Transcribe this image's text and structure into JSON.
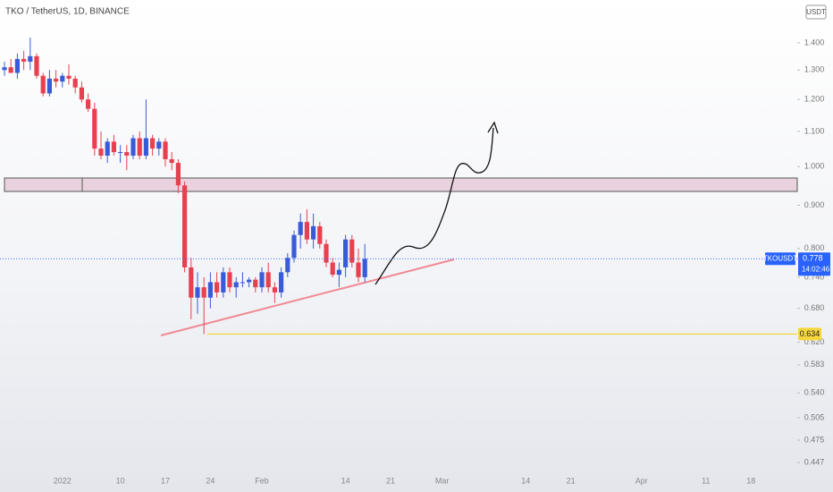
{
  "chart_data": {
    "type": "candlestick",
    "title": "TKO / TetherUS, 1D, BINANCE",
    "currency_button": "USDT",
    "log_scale": true,
    "grid": false,
    "up_color": "#3a5bd9",
    "down_color": "#e8404f",
    "categories": [
      null,
      null,
      null,
      null,
      null,
      null,
      null,
      null,
      null,
      "2022",
      null,
      null,
      null,
      null,
      null,
      null,
      null,
      null,
      "10",
      null,
      null,
      null,
      null,
      null,
      null,
      "17",
      null,
      null,
      null,
      null,
      null,
      null,
      "24",
      null,
      null,
      null,
      null,
      null,
      null,
      null,
      "Feb",
      null,
      null,
      null,
      null,
      null,
      null,
      null,
      null,
      null,
      null,
      null,
      null,
      "14",
      null,
      null,
      null,
      null,
      null,
      null,
      "21",
      null,
      null,
      null,
      null,
      null,
      null,
      null,
      "Mar",
      null,
      null,
      null,
      null,
      null,
      null,
      null,
      null,
      null,
      null,
      null,
      null,
      "14",
      null,
      null,
      null,
      null,
      null,
      null,
      "21",
      null,
      null,
      null,
      null,
      null,
      null,
      null,
      null,
      null,
      null,
      "Apr",
      null,
      null,
      null,
      null,
      null,
      null,
      null,
      null,
      null,
      "11",
      null,
      null,
      null,
      null,
      null,
      null,
      "18",
      null,
      null,
      null,
      null,
      null,
      null,
      null
    ],
    "open": [
      1.3,
      1.31,
      1.29,
      1.34,
      1.33,
      1.35,
      1.28,
      1.22,
      1.27,
      1.26,
      1.28,
      1.27,
      1.24,
      1.2,
      1.17,
      1.05,
      1.03,
      1.07,
      1.04,
      1.04,
      1.03,
      1.08,
      1.03,
      1.08,
      1.05,
      1.07,
      1.02,
      1.01,
      0.95,
      0.76,
      0.7,
      0.72,
      0.7,
      0.73,
      0.71,
      0.75,
      0.72,
      0.73,
      0.73,
      0.735,
      0.72,
      0.75,
      0.72,
      0.71,
      0.75,
      0.78,
      0.83,
      0.86,
      0.82,
      0.85,
      0.81,
      0.77,
      0.745,
      0.76,
      0.82,
      0.77,
      0.74,
      null,
      null,
      null,
      null,
      null,
      null,
      null,
      null,
      null,
      null,
      null,
      null,
      null,
      null,
      null,
      null,
      null,
      null,
      null,
      null,
      null,
      null,
      null,
      null,
      null,
      null,
      null,
      null,
      null,
      null,
      null,
      null,
      null,
      null,
      null,
      null,
      null,
      null,
      null,
      null,
      null,
      null,
      null,
      null,
      null,
      null,
      null,
      null,
      null,
      null,
      null,
      null,
      null,
      null,
      null,
      null,
      null,
      null,
      null,
      null,
      null,
      null,
      null,
      null,
      null,
      null,
      null
    ],
    "high": [
      1.33,
      1.34,
      1.36,
      1.37,
      1.42,
      1.36,
      1.29,
      1.3,
      1.3,
      1.29,
      1.32,
      1.28,
      1.26,
      1.22,
      1.19,
      1.1,
      1.08,
      1.09,
      1.06,
      1.06,
      1.09,
      1.1,
      1.2,
      1.09,
      1.08,
      1.08,
      1.04,
      1.02,
      0.96,
      0.78,
      0.75,
      0.74,
      0.75,
      0.75,
      0.76,
      0.76,
      0.74,
      0.75,
      0.74,
      0.74,
      0.76,
      0.77,
      0.73,
      0.76,
      0.79,
      0.84,
      0.88,
      0.89,
      0.88,
      0.86,
      0.82,
      0.78,
      0.77,
      0.83,
      0.83,
      0.8,
      0.81,
      null,
      null,
      null,
      null,
      null,
      null,
      null,
      null,
      null,
      null,
      null,
      null,
      null,
      null,
      null,
      null,
      null,
      null,
      null,
      null,
      null,
      null,
      null,
      null,
      null,
      null,
      null,
      null,
      null,
      null,
      null,
      null,
      null,
      null,
      null,
      null,
      null,
      null,
      null,
      null,
      null,
      null,
      null,
      null,
      null,
      null,
      null,
      null,
      null,
      null,
      null,
      null,
      null,
      null,
      null,
      null,
      null,
      null,
      null,
      null,
      null,
      null,
      null,
      null,
      null,
      null,
      null
    ],
    "low": [
      1.28,
      1.29,
      1.27,
      1.3,
      1.3,
      1.27,
      1.21,
      1.21,
      1.24,
      1.24,
      1.25,
      1.22,
      1.19,
      1.16,
      1.03,
      1.02,
      1.01,
      1.03,
      1.01,
      0.99,
      1.02,
      1.02,
      1.02,
      1.03,
      1.03,
      1.0,
      0.99,
      0.93,
      0.75,
      0.66,
      0.67,
      0.634,
      0.68,
      0.7,
      0.7,
      0.71,
      0.7,
      0.72,
      0.72,
      0.71,
      0.71,
      0.71,
      0.69,
      0.7,
      0.74,
      0.77,
      0.8,
      0.81,
      0.8,
      0.8,
      0.76,
      0.74,
      0.72,
      0.74,
      0.76,
      0.73,
      0.73,
      null,
      null,
      null,
      null,
      null,
      null,
      null,
      null,
      null,
      null,
      null,
      null,
      null,
      null,
      null,
      null,
      null,
      null,
      null,
      null,
      null,
      null,
      null,
      null,
      null,
      null,
      null,
      null,
      null,
      null,
      null,
      null,
      null,
      null,
      null,
      null,
      null,
      null,
      null,
      null,
      null,
      null,
      null,
      null,
      null,
      null,
      null,
      null,
      null,
      null,
      null,
      null,
      null,
      null,
      null,
      null,
      null,
      null,
      null,
      null,
      null,
      null,
      null,
      null,
      null,
      null,
      null
    ],
    "close": [
      1.31,
      1.29,
      1.34,
      1.33,
      1.35,
      1.28,
      1.22,
      1.27,
      1.26,
      1.28,
      1.27,
      1.24,
      1.2,
      1.17,
      1.05,
      1.03,
      1.07,
      1.04,
      1.04,
      1.03,
      1.08,
      1.03,
      1.08,
      1.05,
      1.07,
      1.02,
      1.01,
      0.95,
      0.76,
      0.7,
      0.72,
      0.7,
      0.73,
      0.71,
      0.75,
      0.72,
      0.73,
      0.73,
      0.735,
      0.72,
      0.75,
      0.72,
      0.71,
      0.75,
      0.78,
      0.83,
      0.86,
      0.82,
      0.85,
      0.81,
      0.77,
      0.745,
      0.755,
      0.82,
      0.77,
      0.74,
      0.778,
      null,
      null,
      null,
      null,
      null,
      null,
      null,
      null,
      null,
      null,
      null,
      null,
      null,
      null,
      null,
      null,
      null,
      null,
      null,
      null,
      null,
      null,
      null,
      null,
      null,
      null,
      null,
      null,
      null,
      null,
      null,
      null,
      null,
      null,
      null,
      null,
      null,
      null,
      null,
      null,
      null,
      null,
      null,
      null,
      null,
      null,
      null,
      null,
      null,
      null,
      null,
      null,
      null,
      null,
      null,
      null,
      null,
      null,
      null,
      null,
      null,
      null,
      null,
      null,
      null,
      null,
      null
    ],
    "ylim": [
      0.431,
      1.573
    ],
    "yticks": [
      {
        "value": 1.4,
        "label": "1.400"
      },
      {
        "value": 1.3,
        "label": "1.300"
      },
      {
        "value": 1.2,
        "label": "1.200"
      },
      {
        "value": 1.1,
        "label": "1.100"
      },
      {
        "value": 1.0,
        "label": "1.000"
      },
      {
        "value": 0.9,
        "label": "0.900"
      },
      {
        "value": 0.8,
        "label": "0.800"
      },
      {
        "value": 0.74,
        "label": "0.740"
      },
      {
        "value": 0.68,
        "label": "0.680"
      },
      {
        "value": 0.62,
        "label": "0.620"
      },
      {
        "value": 0.583,
        "label": "0.583"
      },
      {
        "value": 0.54,
        "label": "0.540"
      },
      {
        "value": 0.505,
        "label": "0.505"
      },
      {
        "value": 0.475,
        "label": "0.475"
      },
      {
        "value": 0.447,
        "label": "0.447"
      }
    ],
    "last_price": {
      "symbol": "TKOUSDT",
      "value": 0.778,
      "label": "0.778",
      "countdown": "14:02:46",
      "color": "#2962ff"
    },
    "horizontal_line": {
      "value": 0.634,
      "label": "0.634",
      "color": "#f5d63d"
    }
  }
}
